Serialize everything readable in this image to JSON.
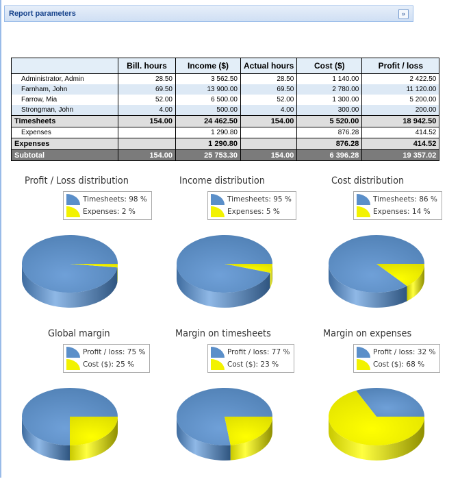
{
  "panel": {
    "title": "Report parameters",
    "collapse_icon": "double-chevron-down-icon"
  },
  "table": {
    "headers": [
      "",
      "Bill. hours",
      "Income ($)",
      "Actual hours",
      "Cost ($)",
      "Profit / loss"
    ],
    "rows": [
      {
        "type": "row",
        "cells": [
          "Administrator, Admin",
          "28.50",
          "3 562.50",
          "28.50",
          "1 140.00",
          "2 422.50"
        ]
      },
      {
        "type": "alt",
        "cells": [
          "Farnham, John",
          "69.50",
          "13 900.00",
          "69.50",
          "2 780.00",
          "11 120.00"
        ]
      },
      {
        "type": "row",
        "cells": [
          "Farrow, Mia",
          "52.00",
          "6 500.00",
          "52.00",
          "1 300.00",
          "5 200.00"
        ]
      },
      {
        "type": "alt",
        "cells": [
          "Strongman, John",
          "4.00",
          "500.00",
          "4.00",
          "300.00",
          "200.00"
        ]
      },
      {
        "type": "sum",
        "cells": [
          "Timesheets",
          "154.00",
          "24 462.50",
          "154.00",
          "5 520.00",
          "18 942.50"
        ]
      },
      {
        "type": "row",
        "cells": [
          "Expenses",
          "",
          "1 290.80",
          "",
          "876.28",
          "414.52"
        ]
      },
      {
        "type": "sum",
        "cells": [
          "Expenses",
          "",
          "1 290.80",
          "",
          "876.28",
          "414.52"
        ]
      },
      {
        "type": "tot",
        "cells": [
          "Subtotal",
          "154.00",
          "25 753.30",
          "154.00",
          "6 396.28",
          "19 357.02"
        ]
      }
    ]
  },
  "colors": {
    "blue": "#5b8fc9",
    "yellow": "#f2f200"
  },
  "chart_data": [
    {
      "type": "pie",
      "title": "Profit / Loss distribution",
      "slices": [
        {
          "label": "Timesheets: 98 %",
          "value": 98
        },
        {
          "label": "Expenses: 2 %",
          "value": 2
        }
      ]
    },
    {
      "type": "pie",
      "title": "Income distribution",
      "slices": [
        {
          "label": "Timesheets: 95 %",
          "value": 95
        },
        {
          "label": "Expenses: 5 %",
          "value": 5
        }
      ]
    },
    {
      "type": "pie",
      "title": "Cost distribution",
      "slices": [
        {
          "label": "Timesheets: 86 %",
          "value": 86
        },
        {
          "label": "Expenses: 14 %",
          "value": 14
        }
      ]
    },
    {
      "type": "pie",
      "title": "Global margin",
      "slices": [
        {
          "label": "Profit / loss: 75 %",
          "value": 75
        },
        {
          "label": "Cost ($): 25 %",
          "value": 25
        }
      ]
    },
    {
      "type": "pie",
      "title": "Margin on timesheets",
      "slices": [
        {
          "label": "Profit / loss: 77 %",
          "value": 77
        },
        {
          "label": "Cost ($): 23 %",
          "value": 23
        }
      ]
    },
    {
      "type": "pie",
      "title": "Margin on expenses",
      "slices": [
        {
          "label": "Profit / loss: 32 %",
          "value": 32
        },
        {
          "label": "Cost ($): 68 %",
          "value": 68
        }
      ]
    }
  ]
}
